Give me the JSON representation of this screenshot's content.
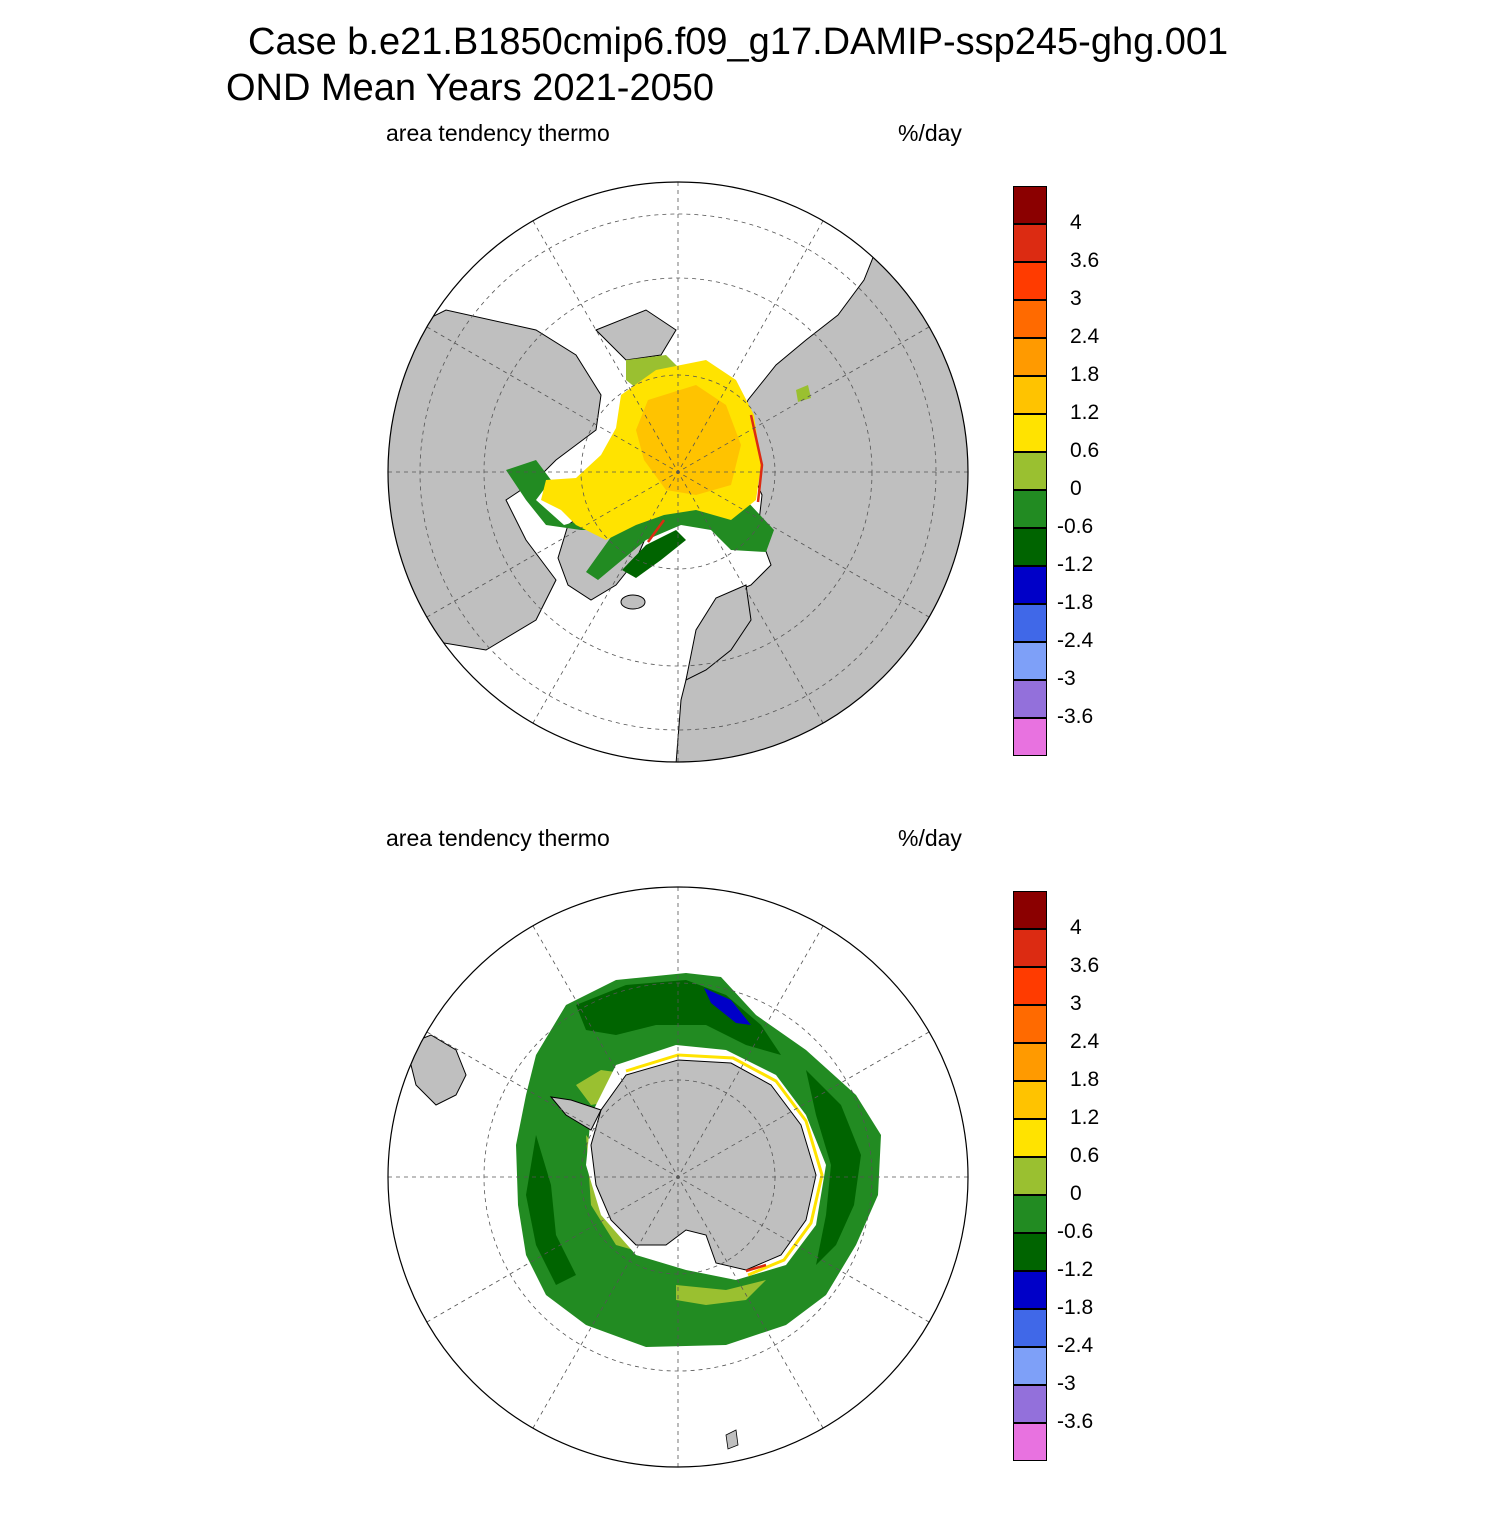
{
  "header": {
    "line1": "Case b.e21.B1850cmip6.f09_g17.DAMIP-ssp245-ghg.001",
    "line2": "OND Mean   Years 2021-2050"
  },
  "panels": [
    {
      "id": "north",
      "left_label": "area tendency thermo",
      "right_label": "%/day",
      "hemisphere": "north"
    },
    {
      "id": "south",
      "left_label": "area tendency thermo",
      "right_label": "%/day",
      "hemisphere": "south"
    }
  ],
  "colorbar": {
    "colors": [
      "#8b0000",
      "#dc2b12",
      "#ff3b00",
      "#ff6a00",
      "#ff9a00",
      "#ffc300",
      "#ffe300",
      "#9ac030",
      "#228b22",
      "#006400",
      "#0000c8",
      "#4068e8",
      "#7ea0f8",
      "#9370db",
      "#e872e0"
    ],
    "labels": [
      "4",
      "3.6",
      "3",
      "2.4",
      "1.8",
      "1.2",
      "0.6",
      "0",
      "-0.6",
      "-1.2",
      "-1.8",
      "-2.4",
      "-3",
      "-3.6"
    ]
  },
  "map_style": {
    "land": "#bfbfbf",
    "ocean": "#ffffff",
    "grid": "#555555"
  }
}
